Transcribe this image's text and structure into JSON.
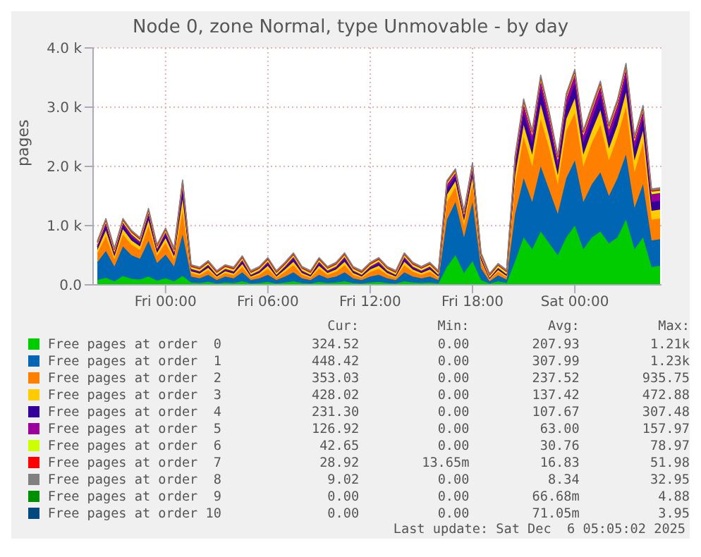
{
  "chart_data": {
    "type": "area",
    "stacked": true,
    "title": "Node 0, zone Normal, type Unmovable - by day",
    "ylabel": "pages",
    "x": [
      "2025-12-04T20:00",
      "2025-12-04T20:30",
      "2025-12-04T21:00",
      "2025-12-04T21:30",
      "2025-12-04T22:00",
      "2025-12-04T22:30",
      "2025-12-04T23:00",
      "2025-12-04T23:30",
      "2025-12-05T00:00",
      "2025-12-05T00:30",
      "2025-12-05T01:00",
      "2025-12-05T01:30",
      "2025-12-05T02:00",
      "2025-12-05T02:30",
      "2025-12-05T03:00",
      "2025-12-05T03:30",
      "2025-12-05T04:00",
      "2025-12-05T04:30",
      "2025-12-05T05:00",
      "2025-12-05T05:30",
      "2025-12-05T06:00",
      "2025-12-05T06:30",
      "2025-12-05T07:00",
      "2025-12-05T07:30",
      "2025-12-05T08:00",
      "2025-12-05T08:30",
      "2025-12-05T09:00",
      "2025-12-05T09:30",
      "2025-12-05T10:00",
      "2025-12-05T10:30",
      "2025-12-05T11:00",
      "2025-12-05T11:30",
      "2025-12-05T12:00",
      "2025-12-05T12:30",
      "2025-12-05T13:00",
      "2025-12-05T13:30",
      "2025-12-05T14:00",
      "2025-12-05T14:30",
      "2025-12-05T15:00",
      "2025-12-05T15:30",
      "2025-12-05T16:00",
      "2025-12-05T16:30",
      "2025-12-05T17:00",
      "2025-12-05T17:30",
      "2025-12-05T18:00",
      "2025-12-05T18:30",
      "2025-12-05T19:00",
      "2025-12-05T19:30",
      "2025-12-05T20:00",
      "2025-12-05T20:30",
      "2025-12-05T21:00",
      "2025-12-05T21:30",
      "2025-12-05T22:00",
      "2025-12-05T22:30",
      "2025-12-05T23:00",
      "2025-12-05T23:30",
      "2025-12-06T00:00",
      "2025-12-06T00:30",
      "2025-12-06T01:00",
      "2025-12-06T01:30",
      "2025-12-06T02:00",
      "2025-12-06T02:30",
      "2025-12-06T03:00",
      "2025-12-06T03:30",
      "2025-12-06T04:00",
      "2025-12-06T04:30",
      "2025-12-06T05:00"
    ],
    "xlim": [
      "2025-12-04T19:45",
      "2025-12-06T05:05"
    ],
    "xticks": [
      {
        "value": "2025-12-05T00:00",
        "label": "Fri 00:00"
      },
      {
        "value": "2025-12-05T06:00",
        "label": "Fri 06:00"
      },
      {
        "value": "2025-12-05T12:00",
        "label": "Fri 12:00"
      },
      {
        "value": "2025-12-05T18:00",
        "label": "Fri 18:00"
      },
      {
        "value": "2025-12-06T00:00",
        "label": "Sat 00:00"
      }
    ],
    "ylim": [
      0,
      4000
    ],
    "yticks": [
      {
        "value": 0,
        "label": "0.0"
      },
      {
        "value": 1000,
        "label": "1.0 k"
      },
      {
        "value": 2000,
        "label": "2.0 k"
      },
      {
        "value": 3000,
        "label": "3.0 k"
      },
      {
        "value": 4000,
        "label": "4.0 k"
      }
    ],
    "grid": true,
    "legend": "bottom",
    "series": [
      {
        "name": "Free pages at order  0",
        "color": "#00cc00",
        "values": [
          80,
          120,
          60,
          150,
          100,
          90,
          140,
          70,
          110,
          60,
          150,
          40,
          30,
          50,
          20,
          40,
          30,
          60,
          20,
          30,
          50,
          20,
          40,
          60,
          30,
          20,
          50,
          30,
          40,
          60,
          30,
          20,
          40,
          50,
          30,
          20,
          60,
          40,
          30,
          40,
          20,
          300,
          500,
          200,
          400,
          80,
          20,
          60,
          30,
          400,
          800,
          600,
          900,
          700,
          500,
          800,
          1000,
          600,
          800,
          900,
          700,
          800,
          1100,
          600,
          800,
          300,
          320
        ]
      },
      {
        "name": "Free pages at order  1",
        "color": "#0066b3",
        "values": [
          300,
          450,
          250,
          500,
          400,
          350,
          600,
          300,
          400,
          250,
          700,
          100,
          80,
          120,
          60,
          100,
          80,
          150,
          60,
          80,
          120,
          60,
          100,
          150,
          80,
          60,
          120,
          80,
          100,
          150,
          80,
          60,
          100,
          120,
          80,
          60,
          150,
          100,
          80,
          100,
          60,
          800,
          900,
          600,
          1000,
          200,
          40,
          100,
          60,
          800,
          1000,
          800,
          1100,
          900,
          700,
          1000,
          1100,
          800,
          900,
          1000,
          800,
          1000,
          1100,
          700,
          900,
          450,
          450
        ]
      },
      {
        "name": "Free pages at order  2",
        "color": "#ff8000",
        "values": [
          150,
          250,
          120,
          200,
          180,
          150,
          250,
          120,
          200,
          120,
          400,
          60,
          50,
          80,
          40,
          60,
          50,
          90,
          40,
          60,
          100,
          40,
          80,
          120,
          60,
          40,
          100,
          60,
          80,
          120,
          60,
          40,
          80,
          100,
          60,
          40,
          120,
          80,
          60,
          80,
          40,
          300,
          250,
          200,
          300,
          100,
          30,
          60,
          40,
          500,
          700,
          600,
          800,
          700,
          500,
          800,
          800,
          600,
          700,
          800,
          600,
          700,
          800,
          600,
          700,
          350,
          350
        ]
      },
      {
        "name": "Free pages at order  3",
        "color": "#ffcc00",
        "values": [
          60,
          100,
          50,
          90,
          70,
          60,
          100,
          50,
          80,
          50,
          200,
          30,
          30,
          40,
          20,
          30,
          30,
          50,
          20,
          30,
          50,
          20,
          40,
          60,
          30,
          20,
          50,
          30,
          40,
          60,
          30,
          20,
          40,
          50,
          30,
          20,
          60,
          40,
          30,
          40,
          20,
          120,
          100,
          80,
          120,
          40,
          10,
          30,
          20,
          150,
          200,
          200,
          250,
          200,
          150,
          200,
          250,
          200,
          200,
          250,
          200,
          200,
          250,
          200,
          200,
          150,
          150
        ]
      },
      {
        "name": "Free pages at order  4",
        "color": "#330099",
        "values": [
          50,
          80,
          40,
          70,
          60,
          50,
          80,
          40,
          60,
          40,
          150,
          20,
          20,
          30,
          20,
          20,
          20,
          40,
          20,
          20,
          40,
          20,
          30,
          50,
          20,
          20,
          40,
          20,
          30,
          50,
          20,
          20,
          30,
          40,
          20,
          20,
          50,
          30,
          20,
          30,
          20,
          100,
          80,
          60,
          100,
          30,
          10,
          20,
          20,
          150,
          200,
          200,
          250,
          200,
          150,
          200,
          250,
          200,
          200,
          250,
          200,
          200,
          250,
          200,
          200,
          150,
          150
        ]
      },
      {
        "name": "Free pages at order  5",
        "color": "#990099",
        "values": [
          30,
          50,
          30,
          40,
          40,
          30,
          50,
          30,
          40,
          30,
          100,
          20,
          20,
          20,
          10,
          20,
          20,
          30,
          10,
          20,
          30,
          10,
          20,
          30,
          20,
          10,
          30,
          20,
          20,
          30,
          20,
          10,
          20,
          30,
          20,
          10,
          30,
          20,
          20,
          20,
          10,
          70,
          60,
          40,
          70,
          20,
          10,
          20,
          10,
          100,
          150,
          120,
          150,
          130,
          100,
          140,
          150,
          120,
          140,
          150,
          120,
          140,
          150,
          120,
          140,
          130,
          130
        ]
      },
      {
        "name": "Free pages at order  6",
        "color": "#ccff00",
        "values": [
          30,
          30,
          30,
          30,
          30,
          30,
          30,
          30,
          30,
          30,
          30,
          30,
          30,
          30,
          30,
          30,
          30,
          30,
          30,
          30,
          30,
          30,
          30,
          30,
          30,
          30,
          30,
          30,
          30,
          30,
          30,
          30,
          30,
          30,
          30,
          30,
          30,
          30,
          30,
          30,
          30,
          30,
          30,
          30,
          30,
          30,
          30,
          30,
          30,
          40,
          40,
          40,
          40,
          40,
          40,
          40,
          40,
          40,
          40,
          40,
          40,
          40,
          40,
          40,
          40,
          40,
          40
        ]
      },
      {
        "name": "Free pages at order  7",
        "color": "#ff0000",
        "values": [
          20,
          20,
          20,
          20,
          20,
          20,
          20,
          20,
          20,
          20,
          20,
          20,
          20,
          20,
          20,
          20,
          20,
          20,
          20,
          20,
          20,
          20,
          20,
          20,
          20,
          20,
          20,
          20,
          20,
          20,
          20,
          20,
          20,
          20,
          20,
          20,
          20,
          20,
          20,
          20,
          20,
          20,
          20,
          20,
          20,
          20,
          20,
          20,
          20,
          20,
          20,
          20,
          20,
          20,
          20,
          20,
          20,
          20,
          20,
          20,
          20,
          20,
          20,
          20,
          20,
          20,
          20
        ]
      },
      {
        "name": "Free pages at order  8",
        "color": "#808080",
        "values": [
          20,
          20,
          20,
          20,
          20,
          20,
          20,
          20,
          20,
          20,
          20,
          20,
          20,
          20,
          20,
          20,
          20,
          20,
          20,
          20,
          20,
          20,
          20,
          20,
          20,
          20,
          20,
          20,
          20,
          20,
          20,
          20,
          20,
          20,
          20,
          20,
          20,
          20,
          20,
          20,
          20,
          20,
          20,
          20,
          20,
          20,
          20,
          20,
          20,
          30,
          30,
          30,
          30,
          30,
          30,
          30,
          30,
          30,
          30,
          30,
          30,
          30,
          30,
          30,
          30,
          30,
          30
        ]
      },
      {
        "name": "Free pages at order  9",
        "color": "#008f00",
        "values": [
          null,
          null,
          null,
          null,
          null,
          null,
          null,
          null,
          null,
          null,
          null,
          null,
          null,
          null,
          null,
          null,
          null,
          null,
          null,
          null,
          null,
          null,
          null,
          null,
          null,
          null,
          null,
          null,
          null,
          null,
          null,
          null,
          null,
          null,
          null,
          null,
          null,
          null,
          null,
          null,
          null,
          null,
          null,
          null,
          null,
          null,
          null,
          null,
          null,
          null,
          null,
          null,
          null,
          null,
          null,
          null,
          null,
          null,
          null,
          null,
          null,
          null,
          null,
          null,
          null,
          null,
          null
        ]
      },
      {
        "name": "Free pages at order 10",
        "color": "#00487d",
        "values": [
          null,
          null,
          null,
          null,
          null,
          null,
          null,
          null,
          null,
          null,
          null,
          null,
          null,
          null,
          null,
          null,
          null,
          null,
          null,
          null,
          null,
          null,
          null,
          null,
          null,
          null,
          null,
          null,
          null,
          null,
          null,
          null,
          null,
          null,
          null,
          null,
          null,
          null,
          null,
          null,
          null,
          null,
          null,
          null,
          null,
          null,
          null,
          null,
          null,
          null,
          null,
          null,
          null,
          null,
          null,
          null,
          null,
          null,
          null,
          null,
          null,
          null,
          null,
          null,
          null,
          null,
          null
        ]
      }
    ],
    "annotations": [
      "Cur:",
      "Min:",
      "Avg:",
      "Max:",
      "324.52",
      "0.00",
      "207.93",
      "1.21k",
      "448.42",
      "0.00",
      "307.99",
      "1.23k",
      "353.03",
      "0.00",
      "237.52",
      "935.75",
      "428.02",
      "0.00",
      "137.42",
      "472.88",
      "231.30",
      "0.00",
      "107.67",
      "307.48",
      "126.92",
      "0.00",
      "63.00",
      "157.97",
      "42.65",
      "0.00",
      "30.76",
      "78.97",
      "28.92",
      "13.65m",
      "16.83",
      "51.98",
      "9.02",
      "0.00",
      "8.34",
      "32.95",
      "0.00",
      "0.00",
      "66.68m",
      "4.88",
      "0.00",
      "0.00",
      "71.05m",
      "3.95",
      "Last update: Sat Dec  6 05:05:02 2025"
    ]
  }
}
